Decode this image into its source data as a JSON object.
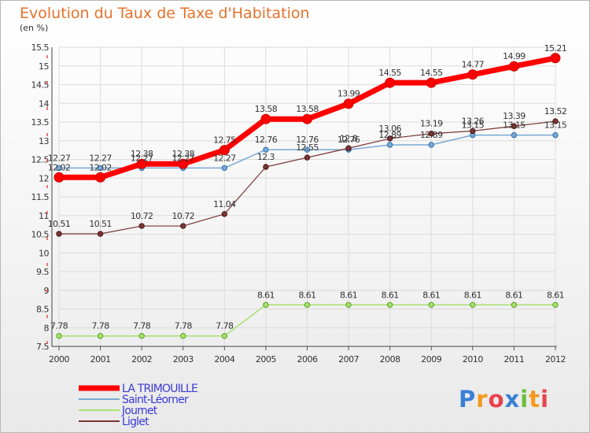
{
  "chart_data": {
    "type": "line",
    "title": "Evolution du Taux de Taxe d'Habitation",
    "subtitle": "(en %)",
    "x": [
      "2000",
      "2001",
      "2002",
      "2003",
      "2004",
      "2005",
      "2006",
      "2007",
      "2008",
      "2009",
      "2010",
      "2011",
      "2012"
    ],
    "ylim": [
      7.5,
      15.5
    ],
    "yticks": [
      "7.5",
      "8",
      "8.5",
      "9",
      "9.5",
      "10",
      "10.5",
      "11",
      "11.5",
      "12",
      "12.5",
      "13",
      "13.5",
      "14",
      "14.5",
      "15",
      "15.5"
    ],
    "grid": true,
    "legend_position": "bottom-left",
    "series": [
      {
        "name": "LA TRIMOUILLE",
        "color": "#ff0000",
        "values": [
          12.02,
          12.02,
          12.38,
          12.38,
          12.75,
          13.58,
          13.58,
          13.99,
          14.55,
          14.55,
          14.77,
          14.99,
          15.21
        ],
        "labels": [
          "12.02",
          "12.02",
          "12.38",
          "12.38",
          "12.75",
          "13.58",
          "13.58",
          "13.99",
          "14.55",
          "14.55",
          "14.77",
          "14.99",
          "15.21"
        ]
      },
      {
        "name": "Saint-Léomer",
        "color": "#7aa9d4",
        "values": [
          12.27,
          12.27,
          12.27,
          12.27,
          12.27,
          12.76,
          12.76,
          12.76,
          12.89,
          12.89,
          13.15,
          13.15,
          13.15
        ],
        "labels": [
          "12.27",
          "12.27",
          "12.27",
          "12.27",
          "12.27",
          "12.76",
          "12.76",
          "12.76",
          "12.89",
          "12.89",
          "13.15",
          "13.15",
          "13.15"
        ]
      },
      {
        "name": "Journet",
        "color": "#a8e070",
        "values": [
          7.78,
          7.78,
          7.78,
          7.78,
          7.78,
          8.61,
          8.61,
          8.61,
          8.61,
          8.61,
          8.61,
          8.61,
          8.61
        ],
        "labels": [
          "7.78",
          "7.78",
          "7.78",
          "7.78",
          "7.78",
          "8.61",
          "8.61",
          "8.61",
          "8.61",
          "8.61",
          "8.61",
          "8.61",
          "8.61"
        ]
      },
      {
        "name": "Liglet",
        "color": "#7a3535",
        "values": [
          10.51,
          10.51,
          10.72,
          10.72,
          11.04,
          12.3,
          12.55,
          12.8,
          13.06,
          13.19,
          13.26,
          13.39,
          13.52
        ],
        "labels": [
          "10.51",
          "10.51",
          "10.72",
          "10.72",
          "11.04",
          "12.3",
          "12.55",
          "12.8",
          "13.06",
          "13.19",
          "13.26",
          "13.39",
          "13.52"
        ]
      }
    ]
  },
  "branding": {
    "logo_letters": [
      {
        "ch": "P",
        "color": "#3a7fd5"
      },
      {
        "ch": "r",
        "color": "#f29a1f"
      },
      {
        "ch": "o",
        "color": "#e8424e"
      },
      {
        "ch": "x",
        "color": "#3a7fd5"
      },
      {
        "ch": "i",
        "color": "#6bbf3a"
      },
      {
        "ch": "t",
        "color": "#f29a1f"
      },
      {
        "ch": "i",
        "color": "#e8424e"
      }
    ]
  }
}
